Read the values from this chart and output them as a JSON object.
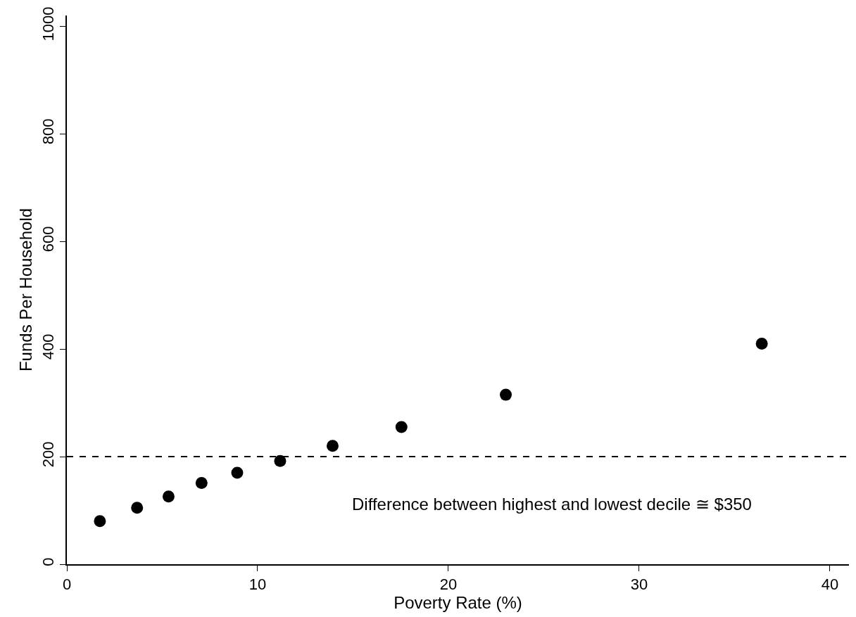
{
  "chart_data": {
    "type": "scatter",
    "xlabel": "Poverty Rate (%)",
    "ylabel": "Funds Per Household",
    "x": [
      1.73,
      3.68,
      5.33,
      7.06,
      8.93,
      11.18,
      13.93,
      17.54,
      23.01,
      36.43
    ],
    "series": [
      {
        "color": "#000000",
        "values": [
          80,
          105,
          126,
          151,
          170,
          192,
          220,
          255,
          315,
          410
        ]
      }
    ],
    "marker": "circle",
    "xlim": [
      0,
      41
    ],
    "ylim": [
      0,
      1020
    ],
    "xticks": [
      0,
      10,
      20,
      30,
      40
    ],
    "yticks": [
      0,
      200,
      400,
      600,
      800,
      1000
    ],
    "ref_lines": [
      {
        "axis": "y",
        "value": 200,
        "color": "#000000",
        "line_style": "dashed"
      }
    ],
    "annotations": [
      "Difference between highest and lowest decile ≅ $350"
    ]
  }
}
